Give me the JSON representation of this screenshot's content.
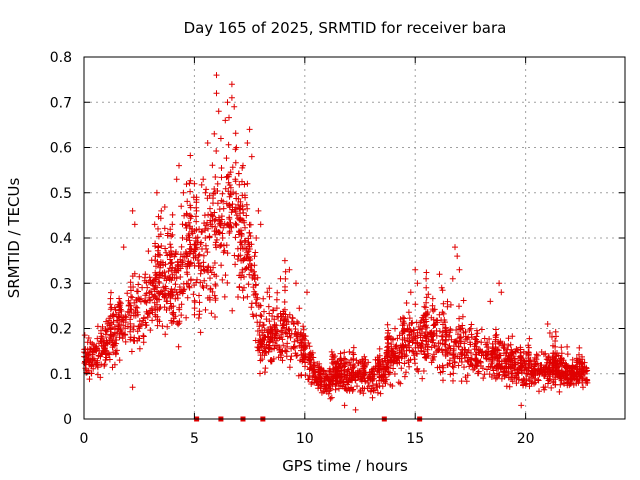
{
  "chart_data": {
    "type": "scatter",
    "title": "Day 165 of 2025, SRMTID for receiver bara",
    "xlabel": "GPS time / hours",
    "ylabel": "SRMTID / TECUs",
    "xlim": [
      0,
      24.5
    ],
    "ylim": [
      0,
      0.8
    ],
    "xticks": [
      0,
      5,
      10,
      15,
      20
    ],
    "yticks": [
      0,
      0.1,
      0.2,
      0.3,
      0.4,
      0.5,
      0.6,
      0.7,
      0.8
    ],
    "xtick_labels": [
      "0",
      "5",
      "10",
      "15",
      "20"
    ],
    "ytick_labels": [
      "0",
      "0.1",
      "0.2",
      "0.3",
      "0.4",
      "0.5",
      "0.6",
      "0.7",
      "0.8"
    ],
    "grid": true,
    "marker": "+",
    "color": "#e00000",
    "envelope": {
      "x": [
        0,
        0.5,
        1,
        1.5,
        2,
        2.5,
        3,
        3.5,
        4,
        4.5,
        5,
        5.5,
        6,
        6.5,
        7,
        7.5,
        8,
        8.5,
        9,
        9.5,
        10,
        10.5,
        11,
        11.5,
        12,
        12.5,
        13,
        13.5,
        14,
        14.5,
        15,
        15.5,
        16,
        16.5,
        17,
        17.5,
        18,
        18.5,
        19,
        19.5,
        20,
        20.5,
        21,
        21.5,
        22,
        22.5,
        22.8
      ],
      "center": [
        0.14,
        0.13,
        0.17,
        0.2,
        0.22,
        0.24,
        0.27,
        0.28,
        0.28,
        0.32,
        0.36,
        0.36,
        0.42,
        0.44,
        0.42,
        0.38,
        0.17,
        0.18,
        0.2,
        0.18,
        0.15,
        0.09,
        0.08,
        0.09,
        0.1,
        0.1,
        0.09,
        0.11,
        0.14,
        0.16,
        0.17,
        0.18,
        0.17,
        0.16,
        0.16,
        0.15,
        0.14,
        0.14,
        0.13,
        0.12,
        0.11,
        0.11,
        0.11,
        0.11,
        0.1,
        0.1,
        0.1
      ],
      "spread": [
        0.03,
        0.05,
        0.06,
        0.07,
        0.08,
        0.09,
        0.1,
        0.1,
        0.1,
        0.12,
        0.13,
        0.13,
        0.16,
        0.16,
        0.15,
        0.12,
        0.06,
        0.07,
        0.08,
        0.07,
        0.06,
        0.03,
        0.03,
        0.04,
        0.04,
        0.04,
        0.04,
        0.05,
        0.06,
        0.07,
        0.07,
        0.07,
        0.07,
        0.07,
        0.06,
        0.06,
        0.05,
        0.05,
        0.05,
        0.05,
        0.04,
        0.04,
        0.04,
        0.04,
        0.03,
        0.03,
        0.03
      ]
    },
    "peaks": [
      {
        "x": 6.0,
        "y": 0.76
      },
      {
        "x": 6.0,
        "y": 0.72
      },
      {
        "x": 6.1,
        "y": 0.68
      },
      {
        "x": 6.5,
        "y": 0.7
      },
      {
        "x": 6.7,
        "y": 0.74
      },
      {
        "x": 6.7,
        "y": 0.71
      },
      {
        "x": 6.8,
        "y": 0.69
      },
      {
        "x": 6.4,
        "y": 0.66
      },
      {
        "x": 7.5,
        "y": 0.64
      },
      {
        "x": 7.4,
        "y": 0.61
      },
      {
        "x": 7.6,
        "y": 0.58
      },
      {
        "x": 5.9,
        "y": 0.63
      },
      {
        "x": 5.6,
        "y": 0.61
      },
      {
        "x": 6.2,
        "y": 0.62
      },
      {
        "x": 6.9,
        "y": 0.6
      },
      {
        "x": 7.2,
        "y": 0.56
      },
      {
        "x": 7.4,
        "y": 0.52
      },
      {
        "x": 4.3,
        "y": 0.56
      },
      {
        "x": 4.2,
        "y": 0.53
      },
      {
        "x": 4.5,
        "y": 0.5
      },
      {
        "x": 4.4,
        "y": 0.47
      },
      {
        "x": 3.3,
        "y": 0.5
      },
      {
        "x": 3.5,
        "y": 0.46
      },
      {
        "x": 5.0,
        "y": 0.52
      },
      {
        "x": 5.1,
        "y": 0.49
      },
      {
        "x": 5.4,
        "y": 0.53
      },
      {
        "x": 5.5,
        "y": 0.5
      },
      {
        "x": 6.3,
        "y": 0.48
      },
      {
        "x": 7.9,
        "y": 0.46
      },
      {
        "x": 8.0,
        "y": 0.43
      },
      {
        "x": 7.8,
        "y": 0.4
      },
      {
        "x": 2.2,
        "y": 0.46
      },
      {
        "x": 2.3,
        "y": 0.43
      },
      {
        "x": 1.8,
        "y": 0.38
      },
      {
        "x": 3.2,
        "y": 0.43
      },
      {
        "x": 3.8,
        "y": 0.41
      },
      {
        "x": 4.0,
        "y": 0.43
      },
      {
        "x": 4.8,
        "y": 0.45
      },
      {
        "x": 4.9,
        "y": 0.42
      },
      {
        "x": 5.8,
        "y": 0.45
      },
      {
        "x": 6.5,
        "y": 0.43
      },
      {
        "x": 7.1,
        "y": 0.44
      },
      {
        "x": 9.1,
        "y": 0.35
      },
      {
        "x": 9.3,
        "y": 0.33
      },
      {
        "x": 8.9,
        "y": 0.31
      },
      {
        "x": 9.6,
        "y": 0.3
      },
      {
        "x": 10.1,
        "y": 0.28
      },
      {
        "x": 8.3,
        "y": 0.28
      },
      {
        "x": 16.8,
        "y": 0.38
      },
      {
        "x": 16.9,
        "y": 0.36
      },
      {
        "x": 17.0,
        "y": 0.33
      },
      {
        "x": 16.7,
        "y": 0.31
      },
      {
        "x": 15.0,
        "y": 0.33
      },
      {
        "x": 15.1,
        "y": 0.3
      },
      {
        "x": 14.8,
        "y": 0.28
      },
      {
        "x": 16.1,
        "y": 0.32
      },
      {
        "x": 16.2,
        "y": 0.29
      },
      {
        "x": 18.8,
        "y": 0.3
      },
      {
        "x": 18.9,
        "y": 0.28
      },
      {
        "x": 18.4,
        "y": 0.26
      },
      {
        "x": 21.0,
        "y": 0.21
      },
      {
        "x": 21.1,
        "y": 0.19
      },
      {
        "x": 19.8,
        "y": 0.03
      },
      {
        "x": 12.3,
        "y": 0.02
      },
      {
        "x": 11.8,
        "y": 0.03
      },
      {
        "x": 2.2,
        "y": 0.07
      },
      {
        "x": 1.4,
        "y": 0.12
      },
      {
        "x": 22.6,
        "y": 0.07
      }
    ],
    "baseline_markers": [
      5.1,
      6.2,
      7.2,
      8.1,
      13.6,
      15.2
    ]
  }
}
